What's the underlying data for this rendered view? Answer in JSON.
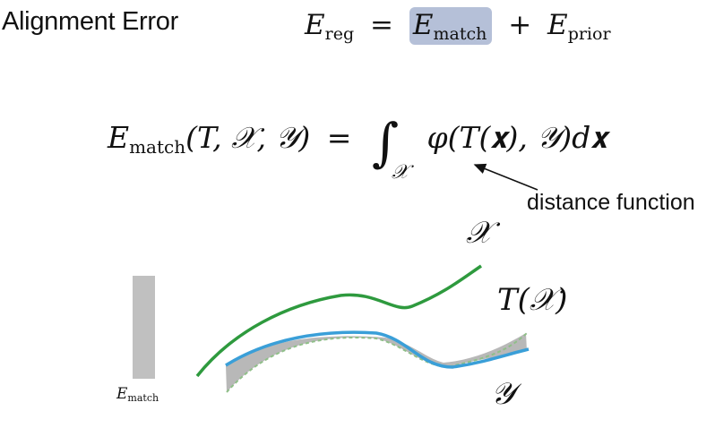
{
  "title": "Alignment Error",
  "top_equation": {
    "lhs_symbol": "E",
    "lhs_sub": "reg",
    "equals": "=",
    "term1_symbol": "E",
    "term1_sub": "match",
    "plus": "+",
    "term2_symbol": "E",
    "term2_sub": "prior"
  },
  "main_equation": {
    "lhs_symbol": "E",
    "lhs_sub": "match",
    "lhs_args": "(T, 𝒳, 𝒴)",
    "equals": "=",
    "integral": "∫",
    "integral_domain": "𝒳",
    "integrand": "φ(T(𝐱), 𝒴)d𝐱"
  },
  "callout": {
    "text": "distance function"
  },
  "bar": {
    "label_symbol": "E",
    "label_sub": "match",
    "color": "#c0c0c0"
  },
  "curves": {
    "x_label": "𝒳",
    "tx_label": "T(𝒳)",
    "y_label": "𝒴",
    "x_color": "#2e9a3e",
    "tx_color": "#3a9fd8",
    "y_color": "#8fbf88",
    "gap_fill": "#b8b8b8"
  },
  "colors": {
    "highlight": "#b5c0d8"
  }
}
